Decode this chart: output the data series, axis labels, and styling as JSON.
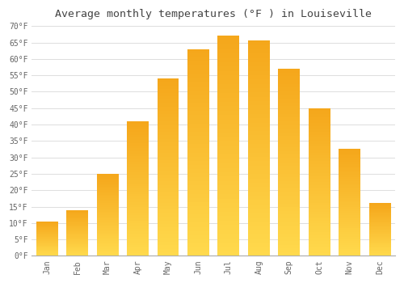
{
  "title": "Average monthly temperatures (°F ) in Louiseville",
  "months": [
    "Jan",
    "Feb",
    "Mar",
    "Apr",
    "May",
    "Jun",
    "Jul",
    "Aug",
    "Sep",
    "Oct",
    "Nov",
    "Dec"
  ],
  "values": [
    10.5,
    14.0,
    25.0,
    41.0,
    54.0,
    63.0,
    67.0,
    65.5,
    57.0,
    45.0,
    32.5,
    16.0
  ],
  "bar_color_top": "#F5A800",
  "bar_color_bottom": "#FFD966",
  "ylim": [
    0,
    70
  ],
  "yticks": [
    0,
    5,
    10,
    15,
    20,
    25,
    30,
    35,
    40,
    45,
    50,
    55,
    60,
    65,
    70
  ],
  "ytick_labels": [
    "0°F",
    "5°F",
    "10°F",
    "15°F",
    "20°F",
    "25°F",
    "30°F",
    "35°F",
    "40°F",
    "45°F",
    "50°F",
    "55°F",
    "60°F",
    "65°F",
    "70°F"
  ],
  "background_color": "#ffffff",
  "grid_color": "#dddddd",
  "title_fontsize": 9.5,
  "tick_fontsize": 7,
  "bar_width": 0.72
}
